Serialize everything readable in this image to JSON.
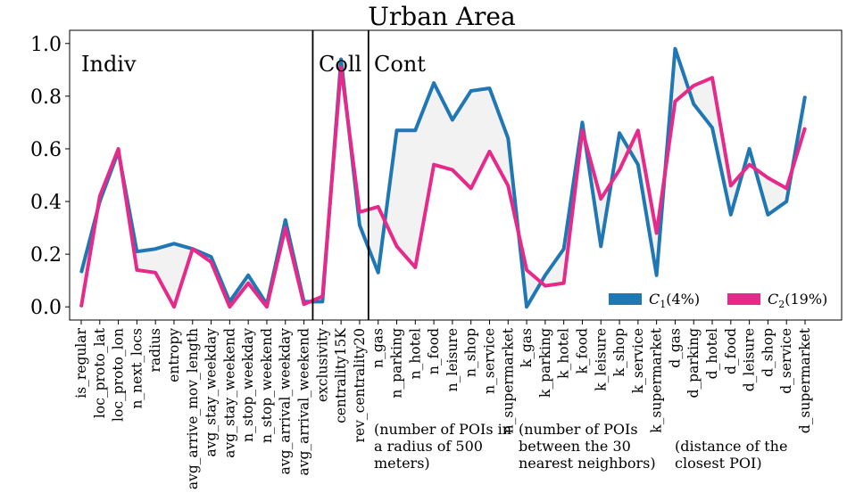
{
  "chart_data": {
    "type": "line",
    "title": "Urban Area",
    "xlabel": "",
    "ylabel": "",
    "ylim": [
      -0.05,
      1.05
    ],
    "yticks": [
      "0.0",
      "0.2",
      "0.4",
      "0.6",
      "0.8",
      "1.0"
    ],
    "ytick_values": [
      0.0,
      0.2,
      0.4,
      0.6,
      0.8,
      1.0
    ],
    "grid": false,
    "legend_placement": "lower-right",
    "fill_between": true,
    "fill_color": "#f2f2f2",
    "categories": [
      "is_regular",
      "loc_proto_lat",
      "loc_proto_lon",
      "n_next_locs",
      "radius",
      "entropy",
      "avg_arrive_mov_length",
      "avg_stay_weekday",
      "avg_stay_weekend",
      "n_stop_weekday",
      "n_stop_weekend",
      "avg_arrival_weekday",
      "avg_arrival_weekend",
      "exclusivity",
      "centrality15K",
      "rev_centrality20",
      "n_gas",
      "n_parking",
      "n_hotel",
      "n_food",
      "n_leisure",
      "n_shop",
      "n_service",
      "n_supermarket",
      "k_gas",
      "k_parking",
      "k_hotel",
      "k_food",
      "k_leisure",
      "k_shop",
      "k_service",
      "k_supermarket",
      "d_gas",
      "d_parking",
      "d_hotel",
      "d_food",
      "d_leisure",
      "d_shop",
      "d_service",
      "d_supermarket"
    ],
    "series": [
      {
        "name": "C_1(4%)",
        "name_base": "C",
        "name_sub": "1",
        "name_suffix": "(4%)",
        "color": "#1f77b4",
        "values": [
          0.13,
          0.4,
          0.59,
          0.21,
          0.22,
          0.24,
          0.22,
          0.19,
          0.02,
          0.12,
          0.01,
          0.33,
          0.02,
          0.02,
          0.94,
          0.31,
          0.13,
          0.67,
          0.67,
          0.85,
          0.71,
          0.82,
          0.83,
          0.64,
          0.0,
          0.12,
          0.22,
          0.7,
          0.23,
          0.66,
          0.54,
          0.12,
          0.98,
          0.77,
          0.68,
          0.35,
          0.6,
          0.35,
          0.4,
          0.8
        ]
      },
      {
        "name": "C_2(19%)",
        "name_base": "C",
        "name_sub": "2",
        "name_suffix": "(19%)",
        "color": "#e7298a",
        "values": [
          0.0,
          0.42,
          0.6,
          0.14,
          0.13,
          0.0,
          0.22,
          0.17,
          0.0,
          0.09,
          0.0,
          0.3,
          0.01,
          0.04,
          0.91,
          0.36,
          0.38,
          0.23,
          0.15,
          0.54,
          0.52,
          0.45,
          0.59,
          0.46,
          0.14,
          0.08,
          0.09,
          0.67,
          0.41,
          0.52,
          0.67,
          0.28,
          0.78,
          0.84,
          0.87,
          0.46,
          0.54,
          0.49,
          0.45,
          0.68
        ]
      }
    ],
    "dividers_after_index": [
      12.5,
      15.5
    ],
    "section_labels": [
      "Indiv",
      "Coll",
      "Cont"
    ],
    "annotations": [
      "(number of POIs in\na radius of 500\nmeters)",
      "(number of POIs\nbetween the 30\nnearest neighbors)",
      "(distance of the\nclosest POI)"
    ]
  }
}
